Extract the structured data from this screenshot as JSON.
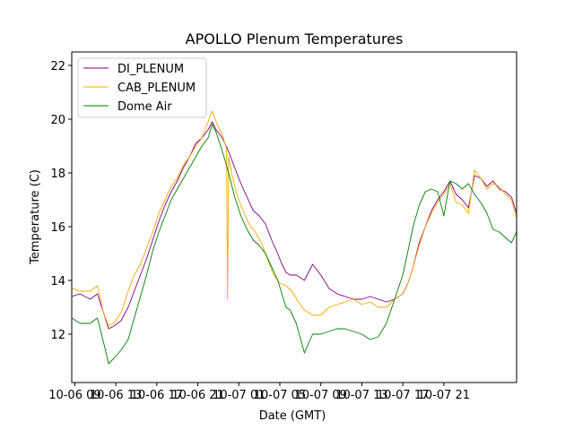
{
  "chart_data": {
    "type": "line",
    "title": "APOLLO Plenum Temperatures",
    "xlabel": "Date (GMT)",
    "ylabel": "Temperature (C)",
    "xlim": [
      -0.3,
      43.1
    ],
    "ylim": [
      10.2,
      22.5
    ],
    "x_unit": "hours since 10-06 09:00",
    "xticks": [
      {
        "value": 0,
        "label": "10-06 09"
      },
      {
        "value": 4,
        "label": "10-06 13"
      },
      {
        "value": 8,
        "label": "10-06 17"
      },
      {
        "value": 12,
        "label": "10-06 21"
      },
      {
        "value": 16,
        "label": "10-07 01"
      },
      {
        "value": 20,
        "label": "10-07 05"
      },
      {
        "value": 24,
        "label": "10-07 09"
      },
      {
        "value": 28,
        "label": "10-07 13"
      },
      {
        "value": 32,
        "label": "10-07 17"
      },
      {
        "value": 36,
        "label": "10-07 21"
      }
    ],
    "yticks": [
      {
        "value": 12,
        "label": "12"
      },
      {
        "value": 14,
        "label": "14"
      },
      {
        "value": 16,
        "label": "16"
      },
      {
        "value": 18,
        "label": "18"
      },
      {
        "value": 20,
        "label": "20"
      },
      {
        "value": 22,
        "label": "22"
      }
    ],
    "legend_position": "top-left",
    "series": [
      {
        "name": "DI_PLENUM",
        "color": "#800080",
        "x": [
          -0.3,
          0.5,
          1.5,
          2.2,
          2.8,
          3.3,
          3.8,
          4.5,
          5.2,
          5.8,
          6.4,
          7.0,
          7.6,
          8.2,
          8.8,
          9.4,
          10.0,
          10.6,
          11.2,
          11.8,
          12.4,
          13.0,
          13.4,
          13.8,
          14.4,
          15.0,
          15.6,
          16.2,
          16.8,
          17.4,
          18.0,
          18.6,
          19.2,
          19.8,
          20.2,
          20.6,
          21.0,
          21.6,
          22.4,
          23.2,
          24.0,
          24.8,
          25.6,
          26.4,
          27.2,
          28.0,
          28.8,
          29.6,
          30.4,
          31.2,
          32.0,
          32.5,
          33.0,
          33.6,
          34.2,
          34.8,
          35.4,
          36.0,
          36.6,
          37.2,
          37.8,
          38.4,
          39.0,
          39.6,
          40.2,
          40.8,
          41.4,
          42.0,
          42.6,
          43.1
        ],
        "y": [
          13.4,
          13.5,
          13.3,
          13.5,
          12.8,
          12.2,
          12.3,
          12.5,
          13.0,
          13.6,
          14.2,
          14.8,
          15.5,
          16.2,
          16.8,
          17.3,
          17.7,
          18.2,
          18.6,
          19.1,
          19.3,
          19.6,
          19.9,
          19.6,
          19.3,
          18.8,
          18.2,
          17.6,
          17.1,
          16.6,
          16.4,
          16.1,
          15.5,
          15.0,
          14.6,
          14.3,
          14.2,
          14.2,
          14.0,
          14.6,
          14.2,
          13.7,
          13.5,
          13.4,
          13.3,
          13.3,
          13.4,
          13.3,
          13.2,
          13.3,
          13.5,
          13.9,
          14.5,
          15.4,
          16.0,
          16.6,
          17.0,
          17.3,
          17.7,
          17.2,
          17.0,
          16.7,
          17.9,
          17.8,
          17.5,
          17.7,
          17.4,
          17.3,
          17.1,
          16.5
        ]
      },
      {
        "name": "CAB_PLENUM",
        "color": "#ffa500",
        "x": [
          -0.3,
          0.5,
          1.5,
          2.2,
          2.8,
          3.3,
          3.8,
          4.5,
          5.2,
          5.8,
          6.4,
          7.0,
          7.6,
          8.2,
          8.8,
          9.4,
          10.0,
          10.6,
          11.2,
          11.8,
          12.4,
          13.0,
          13.4,
          13.8,
          14.4,
          14.8,
          14.9,
          15.0,
          15.3,
          15.8,
          16.4,
          17.0,
          17.6,
          18.2,
          18.8,
          19.4,
          20.0,
          20.6,
          21.2,
          21.8,
          22.4,
          23.2,
          24.0,
          24.8,
          25.6,
          26.4,
          27.2,
          28.0,
          28.8,
          29.6,
          30.4,
          31.2,
          32.0,
          32.5,
          33.0,
          33.6,
          34.2,
          34.8,
          35.4,
          36.0,
          36.6,
          37.2,
          37.8,
          38.4,
          39.0,
          39.6,
          40.2,
          40.8,
          41.4,
          42.0,
          42.6,
          43.1
        ],
        "y": [
          13.7,
          13.6,
          13.6,
          13.8,
          12.8,
          12.3,
          12.4,
          12.8,
          13.6,
          14.2,
          14.6,
          15.2,
          15.8,
          16.5,
          17.0,
          17.5,
          17.8,
          18.3,
          18.6,
          19.0,
          19.3,
          19.9,
          20.3,
          19.9,
          19.4,
          18.9,
          13.3,
          18.6,
          18.0,
          17.2,
          16.6,
          16.1,
          15.8,
          15.4,
          14.8,
          14.2,
          13.9,
          13.8,
          13.6,
          13.2,
          12.9,
          12.7,
          12.7,
          13.0,
          13.1,
          13.2,
          13.3,
          13.1,
          13.2,
          13.0,
          13.0,
          13.3,
          13.5,
          13.9,
          14.5,
          15.3,
          16.0,
          16.5,
          16.9,
          17.2,
          17.6,
          16.9,
          16.8,
          16.5,
          18.1,
          17.8,
          17.4,
          17.6,
          17.5,
          17.2,
          17.0,
          16.3
        ]
      },
      {
        "name": "Dome Air",
        "color": "#008000",
        "x": [
          -0.3,
          0.5,
          1.5,
          2.2,
          2.8,
          3.3,
          3.8,
          4.5,
          5.2,
          5.8,
          6.4,
          7.0,
          7.6,
          8.2,
          8.8,
          9.4,
          10.0,
          10.6,
          11.2,
          11.8,
          12.4,
          13.0,
          13.4,
          13.8,
          14.4,
          15.0,
          15.6,
          16.2,
          16.8,
          17.4,
          18.0,
          18.6,
          19.2,
          19.8,
          20.2,
          20.6,
          21.0,
          21.6,
          22.4,
          23.2,
          24.0,
          24.8,
          25.6,
          26.4,
          27.2,
          28.0,
          28.8,
          29.6,
          30.4,
          31.2,
          32.0,
          32.5,
          33.0,
          33.6,
          34.2,
          34.8,
          35.4,
          36.0,
          36.6,
          37.2,
          37.8,
          38.4,
          39.0,
          39.6,
          40.2,
          40.8,
          41.4,
          42.0,
          42.6,
          43.1
        ],
        "y": [
          12.6,
          12.4,
          12.4,
          12.6,
          11.7,
          10.9,
          11.1,
          11.4,
          11.8,
          12.6,
          13.4,
          14.2,
          15.1,
          15.8,
          16.4,
          17.0,
          17.4,
          17.8,
          18.2,
          18.6,
          19.0,
          19.3,
          19.8,
          19.5,
          18.8,
          18.0,
          17.1,
          16.4,
          15.9,
          15.5,
          15.3,
          15.0,
          14.5,
          14.0,
          13.5,
          13.0,
          12.9,
          12.4,
          11.3,
          12.0,
          12.0,
          12.1,
          12.2,
          12.2,
          12.1,
          12.0,
          11.8,
          11.9,
          12.4,
          13.3,
          14.2,
          15.1,
          16.0,
          16.8,
          17.3,
          17.4,
          17.3,
          16.4,
          17.7,
          17.6,
          17.4,
          17.6,
          17.2,
          16.9,
          16.5,
          15.9,
          15.8,
          15.6,
          15.4,
          15.8
        ]
      }
    ]
  }
}
